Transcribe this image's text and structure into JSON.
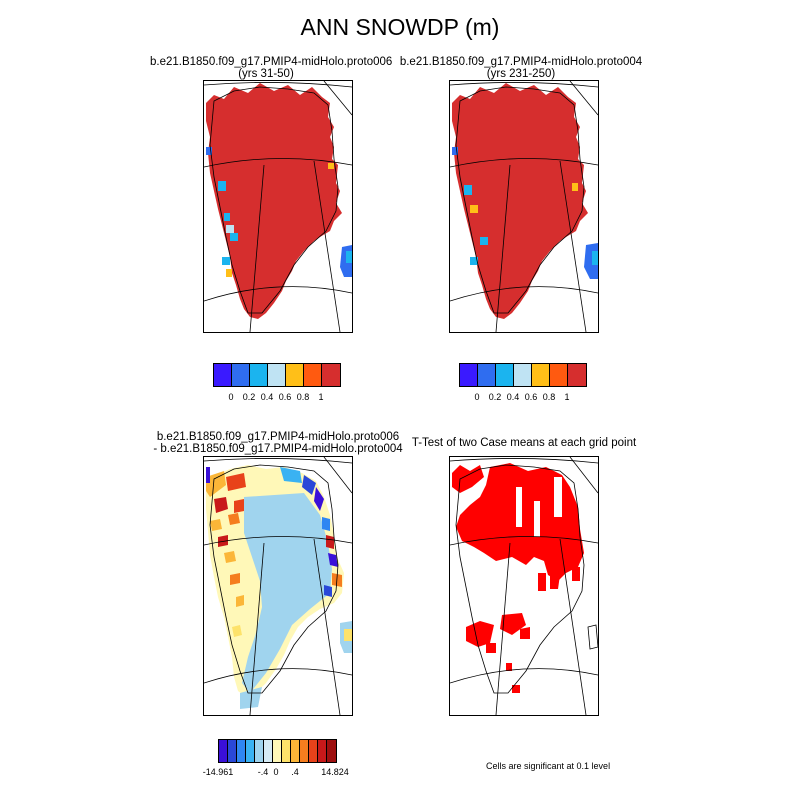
{
  "title": "ANN SNOWDP (m)",
  "panels": {
    "top_left": {
      "title_line1": "b.e21.B1850.f09_g17.PMIP4-midHolo.proto006",
      "title_line2": "(yrs 31-50)"
    },
    "top_right": {
      "title_line1": "b.e21.B1850.f09_g17.PMIP4-midHolo.proto004",
      "title_line2": "(yrs 231-250)"
    },
    "bottom_left": {
      "title_line1": "b.e21.B1850.f09_g17.PMIP4-midHolo.proto006",
      "title_line2": "- b.e21.B1850.f09_g17.PMIP4-midHolo.proto004"
    },
    "bottom_right": {
      "title_line1": "T-Test of two Case means at each grid point"
    }
  },
  "colorbars": {
    "abs": {
      "colors": [
        "#3a1aff",
        "#2f6df0",
        "#1bb4ef",
        "#bfe3f3",
        "#ffbf18",
        "#ff5a10",
        "#d62e2e"
      ],
      "labels": [
        "0",
        "0.2",
        "0.4",
        "0.6",
        "0.8",
        "1"
      ]
    },
    "diff": {
      "colors": [
        "#3a10d8",
        "#2a48d8",
        "#2f86f2",
        "#3ab2f2",
        "#a0d4ee",
        "#d6ebf5",
        "#fff8b8",
        "#fde26a",
        "#fbb638",
        "#f57d1f",
        "#e8421a",
        "#c8191a",
        "#9e1010"
      ],
      "labels": [
        "-14.961",
        "-.4",
        "0",
        ".4",
        "14.824"
      ]
    }
  },
  "footnote": "Cells are significant at 0.1 level"
}
